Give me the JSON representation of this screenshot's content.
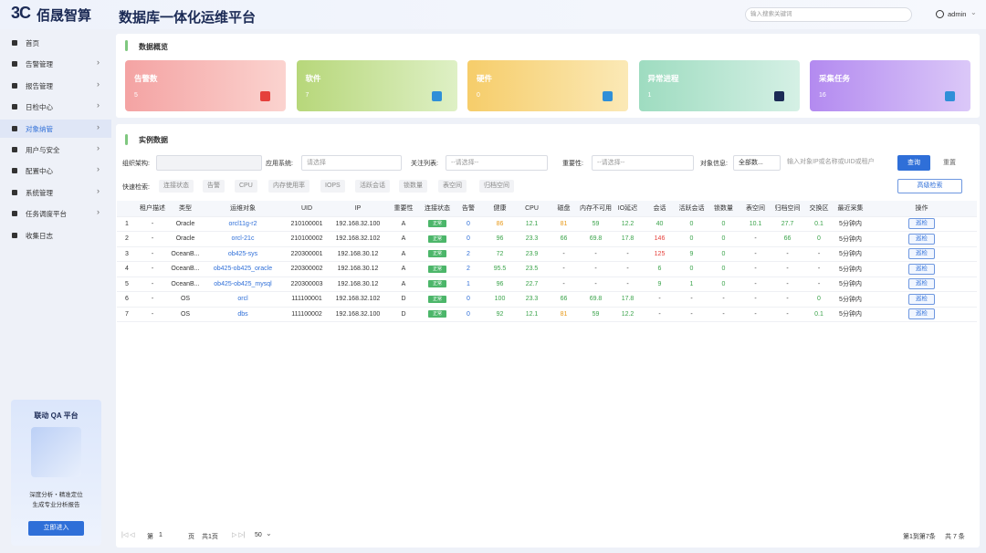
{
  "header": {
    "logo": "3C",
    "brand": "佰晟智算",
    "title": "数据库一体化运维平台",
    "search_placeholder": "输入搜索关键词",
    "user": "admin"
  },
  "sidebar": {
    "menu": [
      "首页",
      "告警管理",
      "报告管理",
      "日检中心",
      "对象纳管",
      "用户与安全",
      "配置中心",
      "系统管理",
      "任务调度平台",
      "收集日志"
    ],
    "promo": {
      "title": "联动 QA 平台",
      "line1": "深度分析・精准定位",
      "line2": "生成专业分析报告",
      "button": "立即进入"
    }
  },
  "overview": {
    "title": "数据概览",
    "cards": [
      {
        "label": "告警数",
        "value": 5
      },
      {
        "label": "软件",
        "value": 7
      },
      {
        "label": "硬件",
        "value": 0
      },
      {
        "label": "异常进程",
        "value": 1
      },
      {
        "label": "采集任务",
        "value": 16
      }
    ]
  },
  "instances": {
    "title": "实例数据",
    "filters": {
      "org": "组织架构:",
      "app": "应用系统:",
      "app_placeholder": "请选择",
      "focus": "关注列表:",
      "focus_placeholder": "--请选择--",
      "importance": "重要性:",
      "importance_placeholder": "--请选择--",
      "object": "对象信息:",
      "object_select": "全部数...",
      "object_placeholder": "输入对象IP或名称或UID或租户",
      "query": "查询",
      "reset": "重置"
    },
    "quick_label": "快速检索:",
    "quick": [
      "连接状态",
      "告警",
      "CPU",
      "内存使用率",
      "IOPS",
      "活跃会话",
      "锁数量",
      "表空间",
      "归档空间"
    ],
    "advanced": "高级检索",
    "columns": [
      null,
      "租户描述",
      "类型",
      "运维对象",
      "UID",
      "IP",
      "重要性",
      "连接状态",
      "告警",
      "健康",
      "CPU",
      "磁盘",
      "内存不可用",
      "IO延迟",
      "会话",
      "活跃会话",
      "锁数量",
      "表空间",
      "归档空间",
      "交换区",
      "最近采集",
      "操作"
    ],
    "rows": [
      [
        "1",
        "-",
        "Oracle",
        "orcl11g-r2",
        "210100001",
        "192.168.32.100",
        "A",
        "正常",
        "0",
        "86",
        "12.1",
        "81",
        "59",
        "12.2",
        "40",
        "0",
        "0",
        "10.1",
        "27.7",
        "0.1",
        "5分钟内",
        "巡检"
      ],
      [
        "2",
        "-",
        "Oracle",
        "orcl-21c",
        "210100002",
        "192.168.32.102",
        "A",
        "正常",
        "0",
        "96",
        "23.3",
        "66",
        "69.8",
        "17.8",
        "146",
        "0",
        "0",
        "-",
        "66",
        "0",
        "5分钟内",
        "巡检"
      ],
      [
        "3",
        "-",
        "OceanB...",
        "ob425-sys",
        "220300001",
        "192.168.30.12",
        "A",
        "正常",
        "2",
        "72",
        "23.9",
        "-",
        "-",
        "-",
        "125",
        "9",
        "0",
        "-",
        "-",
        "-",
        "5分钟内",
        "巡检"
      ],
      [
        "4",
        "-",
        "OceanB...",
        "ob425-ob425_oracle",
        "220300002",
        "192.168.30.12",
        "A",
        "正常",
        "2",
        "95.5",
        "23.5",
        "-",
        "-",
        "-",
        "6",
        "0",
        "0",
        "-",
        "-",
        "-",
        "5分钟内",
        "巡检"
      ],
      [
        "5",
        "-",
        "OceanB...",
        "ob425-ob425_mysql",
        "220300003",
        "192.168.30.12",
        "A",
        "正常",
        "1",
        "96",
        "22.7",
        "-",
        "-",
        "-",
        "9",
        "1",
        "0",
        "-",
        "-",
        "-",
        "5分钟内",
        "巡检"
      ],
      [
        "6",
        "-",
        "OS",
        "orcl",
        "111100001",
        "192.168.32.102",
        "D",
        "正常",
        "0",
        "100",
        "23.3",
        "66",
        "69.8",
        "17.8",
        "-",
        "-",
        "-",
        "-",
        "-",
        "0",
        "5分钟内",
        "巡检"
      ],
      [
        "7",
        "-",
        "OS",
        "dbs",
        "111100002",
        "192.168.32.100",
        "D",
        "正常",
        "0",
        "92",
        "12.1",
        "81",
        "59",
        "12.2",
        "-",
        "-",
        "-",
        "-",
        "-",
        "0.1",
        "5分钟内",
        "巡检"
      ]
    ],
    "pagination": {
      "page_prefix": "第",
      "page": "1",
      "page_suffix": "页",
      "total_pages": "共1页",
      "page_size": "50",
      "range": "第1到第7条",
      "total": "共 7 条"
    }
  }
}
